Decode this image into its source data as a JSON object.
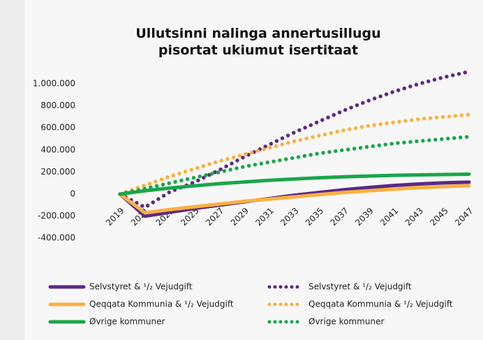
{
  "chart_data": {
    "type": "line",
    "title": "Ullutsinni nalinga annertusillugu pisortat ukiumut isertitaat",
    "categories": [
      "2019",
      "2021",
      "2023",
      "2025",
      "2027",
      "2029",
      "2031",
      "2033",
      "2035",
      "2037",
      "2039",
      "2041",
      "2043",
      "2045",
      "2047"
    ],
    "ylim": [
      -400000,
      1100000
    ],
    "yticks": [
      {
        "value": -400000,
        "label": "-400.000"
      },
      {
        "value": -200000,
        "label": "-200.000"
      },
      0,
      {
        "value": 200000,
        "label": "200.000"
      },
      {
        "value": 400000,
        "label": "400.000"
      },
      {
        "value": 600000,
        "label": "600.000"
      },
      {
        "value": 800000,
        "label": "800.000"
      },
      {
        "value": 1000000,
        "label": "1.000.000"
      }
    ],
    "legend": "bottom",
    "series": [
      {
        "name": "Selvstyret & ¹/₂ Vejudgift",
        "color": "#5b2a86",
        "style": "solid",
        "values": [
          0,
          -200000,
          -165000,
          -130000,
          -100000,
          -70000,
          -40000,
          -10000,
          15000,
          40000,
          60000,
          78000,
          92000,
          102000,
          108000
        ]
      },
      {
        "name": "Selvstyret & ¹/₂ Vejudgift",
        "color": "#5b2a86",
        "style": "dotted",
        "values": [
          0,
          -120000,
          20000,
          110000,
          220000,
          340000,
          450000,
          560000,
          660000,
          760000,
          850000,
          930000,
          1000000,
          1060000,
          1110000
        ]
      },
      {
        "name": "Qeqqata Kommunia & ¹/₂ Vejudgift",
        "color": "#fbb040",
        "style": "solid",
        "values": [
          0,
          -170000,
          -140000,
          -115000,
          -90000,
          -65000,
          -45000,
          -25000,
          -5000,
          15000,
          30000,
          45000,
          58000,
          68000,
          75000
        ]
      },
      {
        "name": "Qeqqata Kommunia & ¹/₂ Vejudgift",
        "color": "#fbb040",
        "style": "dotted",
        "values": [
          0,
          80000,
          160000,
          230000,
          300000,
          360000,
          420000,
          480000,
          530000,
          580000,
          620000,
          650000,
          680000,
          700000,
          720000
        ]
      },
      {
        "name": "Øvrige kommuner",
        "color": "#1aa64a",
        "style": "solid",
        "values": [
          0,
          30000,
          55000,
          75000,
          95000,
          110000,
          125000,
          137000,
          148000,
          157000,
          164000,
          170000,
          174000,
          177000,
          180000
        ]
      },
      {
        "name": "Øvrige kommuner",
        "color": "#1aa64a",
        "style": "dotted",
        "values": [
          0,
          50000,
          100000,
          150000,
          200000,
          250000,
          290000,
          330000,
          370000,
          400000,
          430000,
          460000,
          480000,
          500000,
          520000
        ]
      }
    ]
  }
}
